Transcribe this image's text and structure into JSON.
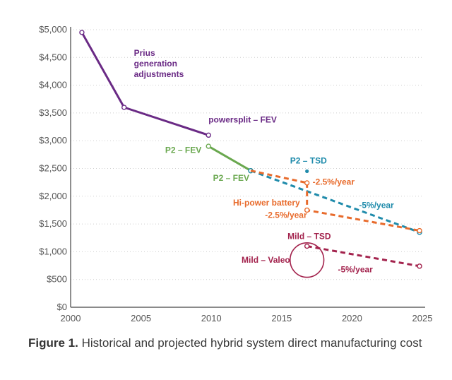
{
  "chart_data": {
    "type": "line",
    "title": "",
    "xlabel": "",
    "ylabel": "",
    "xlim": [
      2000,
      2025
    ],
    "ylim": [
      0,
      5000
    ],
    "grid": "horizontal dotted",
    "xticks": [
      "2000",
      "2005",
      "2010",
      "2015",
      "2020",
      "2025"
    ],
    "yticks": [
      "$0",
      "$500",
      "$1,000",
      "$1,500",
      "$2,000",
      "$2,500",
      "$3,000",
      "$3,500",
      "$4,000",
      "$4,500",
      "$5,000"
    ],
    "colors": {
      "prius": "#6a2a85",
      "p2": "#6aa84f",
      "tsd": "#1f8bab",
      "hipower": "#e86b2c",
      "mild": "#a3234d",
      "axis": "#444444",
      "grid": "#cfcfcf"
    },
    "series": [
      {
        "key": "prius",
        "style": "solid",
        "marker": true,
        "points": [
          [
            2000.8,
            4950
          ],
          [
            2003.8,
            3600
          ],
          [
            2009.8,
            3100
          ]
        ]
      },
      {
        "key": "p2",
        "style": "solid",
        "marker": true,
        "points": [
          [
            2009.8,
            2900
          ],
          [
            2012.8,
            2460
          ]
        ]
      },
      {
        "key": "tsd",
        "style": "dashed",
        "marker": true,
        "points": [
          [
            2012.8,
            2460
          ],
          [
            2024.8,
            1350
          ]
        ]
      },
      {
        "key": "hipower",
        "style": "dashed",
        "marker": false,
        "points": [
          [
            2012.8,
            2460
          ],
          [
            2016.8,
            2240
          ]
        ]
      },
      {
        "key": "hipower",
        "style": "dashed",
        "marker": true,
        "points": [
          [
            2016.8,
            2240
          ],
          [
            2016.8,
            1750
          ],
          [
            2024.8,
            1380
          ]
        ]
      },
      {
        "key": "mild",
        "style": "dashed",
        "marker": true,
        "points": [
          [
            2016.8,
            1100
          ],
          [
            2024.8,
            740
          ]
        ]
      }
    ],
    "extra_points": [
      {
        "key": "tsd",
        "x": 2016.8,
        "y": 2450,
        "filled": true
      }
    ],
    "circle": {
      "key": "mild",
      "x": 2016.8,
      "y": 850,
      "rx_years": 1.2,
      "ry_value": 310
    },
    "annotations": [
      {
        "lines": [
          "Prius",
          "generation",
          "adjustments"
        ],
        "key": "prius",
        "x": 2004.5,
        "y": 4530,
        "anchor": "start"
      },
      {
        "lines": [
          "powersplit – FEV"
        ],
        "key": "prius",
        "x": 2009.8,
        "y": 3330,
        "anchor": "start"
      },
      {
        "lines": [
          "P2 – FEV"
        ],
        "key": "p2",
        "x": 2009.3,
        "y": 2780,
        "anchor": "end"
      },
      {
        "lines": [
          "P2 – FEV"
        ],
        "key": "p2",
        "x": 2012.7,
        "y": 2280,
        "anchor": "end"
      },
      {
        "lines": [
          "P2 – TSD"
        ],
        "key": "tsd",
        "x": 2015.6,
        "y": 2590,
        "anchor": "start"
      },
      {
        "lines": [
          "-2.5%/year"
        ],
        "key": "hipower",
        "x": 2017.2,
        "y": 2210,
        "anchor": "start"
      },
      {
        "lines": [
          "-5%/year"
        ],
        "key": "tsd",
        "x": 2020.5,
        "y": 1790,
        "anchor": "start"
      },
      {
        "lines": [
          "Hi-power battery"
        ],
        "key": "hipower",
        "x": 2016.3,
        "y": 1830,
        "anchor": "end"
      },
      {
        "lines": [
          "-2.5%/year"
        ],
        "key": "hipower",
        "x": 2016.8,
        "y": 1610,
        "anchor": "end"
      },
      {
        "lines": [
          "Mild – TSD"
        ],
        "key": "mild",
        "x": 2018.5,
        "y": 1230,
        "anchor": "end"
      },
      {
        "lines": [
          "Mild – Valeo"
        ],
        "key": "mild",
        "x": 2015.6,
        "y": 800,
        "anchor": "end"
      },
      {
        "lines": [
          "-5%/year"
        ],
        "key": "mild",
        "x": 2019.0,
        "y": 630,
        "anchor": "start"
      }
    ]
  },
  "caption": {
    "label": "Figure 1.",
    "text": " Historical and projected hybrid system direct manufacturing cost"
  }
}
